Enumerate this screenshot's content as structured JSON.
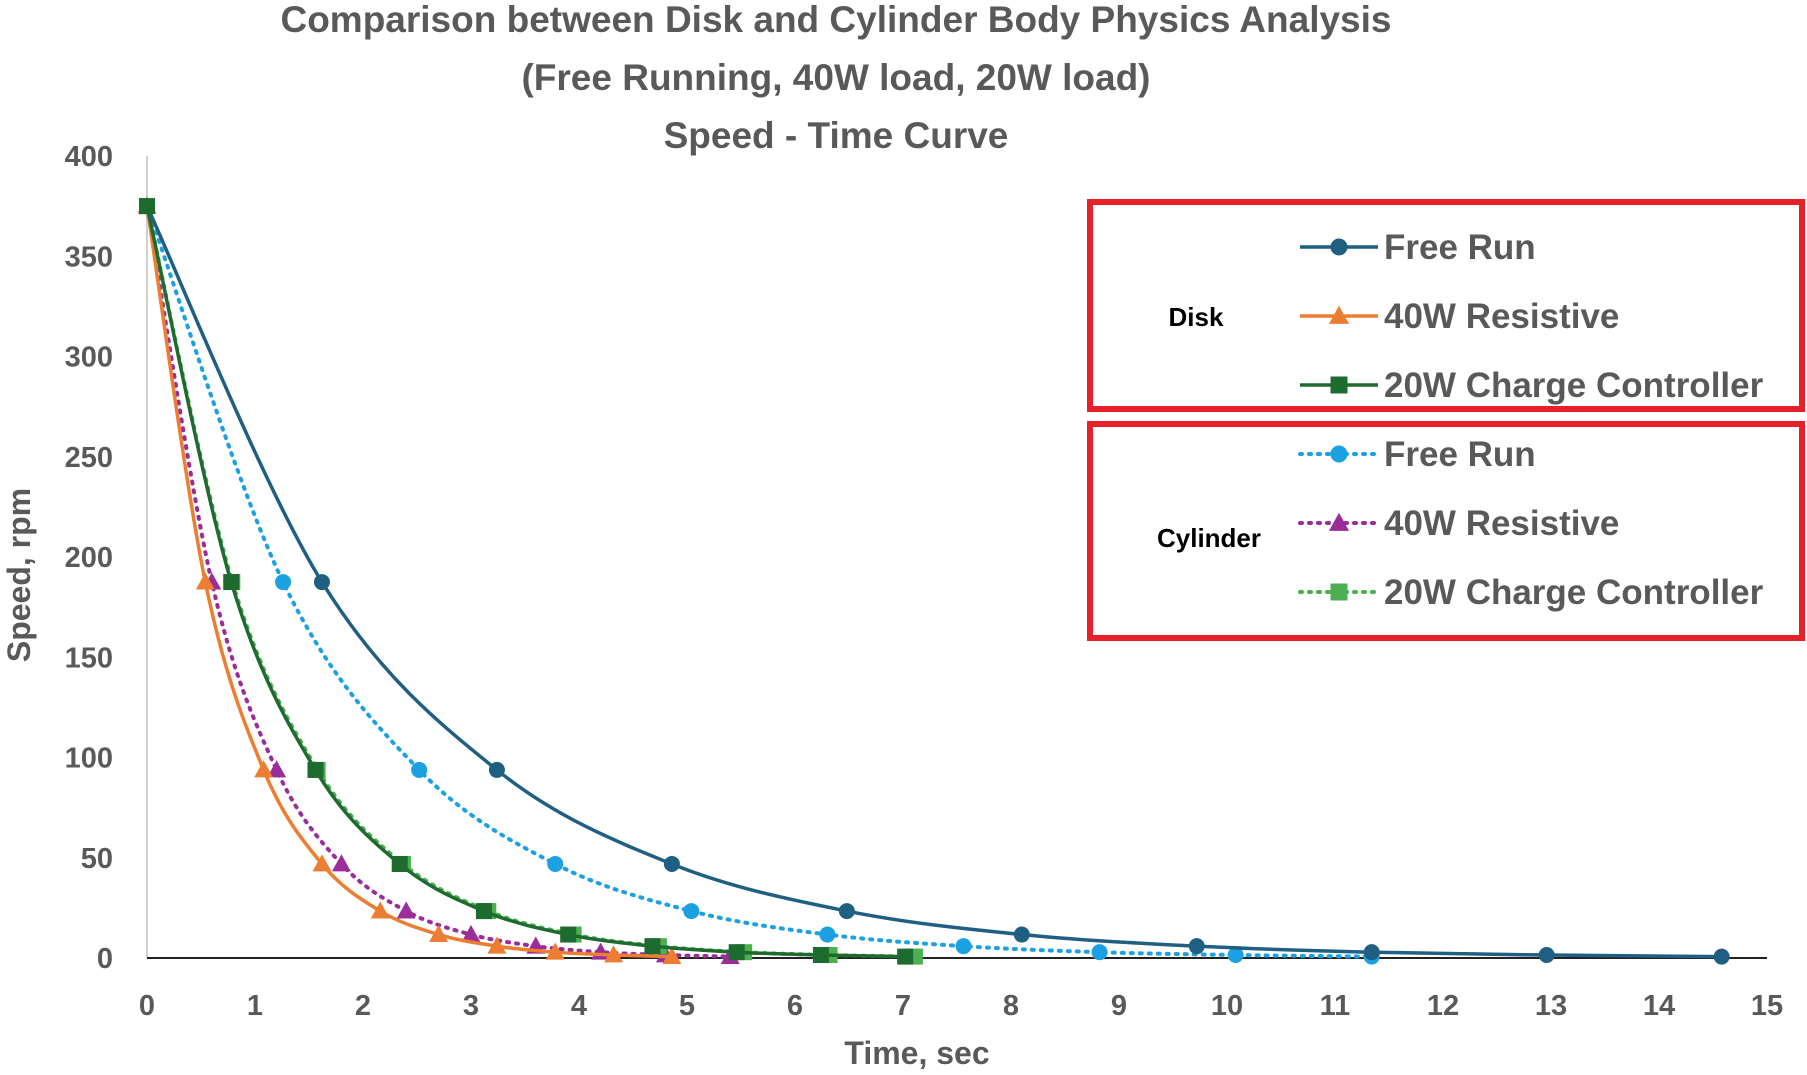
{
  "chart_data": {
    "type": "line",
    "title": [
      "Comparison between Disk and Cylinder Body Physics Analysis",
      "(Free Running, 40W load, 20W load)",
      "Speed - Time Curve"
    ],
    "xlabel": "Time, sec",
    "ylabel": "Speed, rpm",
    "xlim": [
      0,
      15
    ],
    "ylim": [
      0,
      400
    ],
    "xticks": [
      0,
      1,
      2,
      3,
      4,
      5,
      6,
      7,
      8,
      9,
      10,
      11,
      12,
      13,
      14,
      15
    ],
    "yticks": [
      0,
      50,
      100,
      150,
      200,
      250,
      300,
      350,
      400
    ],
    "grid": false,
    "legend_groups": [
      {
        "label": "Disk",
        "series": [
          0,
          1,
          2
        ]
      },
      {
        "label": "Cylinder",
        "series": [
          3,
          4,
          5
        ]
      }
    ],
    "series": [
      {
        "name": "Free Run",
        "group": "Disk",
        "color": "#1f5f82",
        "dash": "solid",
        "marker": "circle",
        "x": [
          0,
          1.62,
          3.24,
          4.86,
          6.48,
          8.1,
          9.72,
          11.34,
          12.96,
          14.58
        ],
        "y": [
          375,
          187.5,
          93.8,
          46.9,
          23.4,
          11.7,
          5.9,
          2.9,
          1.5,
          0.7
        ]
      },
      {
        "name": "40W Resistive",
        "group": "Disk",
        "color": "#ed7d31",
        "dash": "solid",
        "marker": "triangle",
        "x": [
          0,
          0.54,
          1.08,
          1.62,
          2.16,
          2.7,
          3.24,
          3.78,
          4.32,
          4.86
        ],
        "y": [
          375,
          187.5,
          93.8,
          46.9,
          23.4,
          11.7,
          5.9,
          2.9,
          1.5,
          0.7
        ]
      },
      {
        "name": "20W Charge Controller",
        "group": "Disk",
        "color": "#1e6b30",
        "dash": "solid",
        "marker": "square",
        "x": [
          0,
          0.78,
          1.56,
          2.34,
          3.12,
          3.9,
          4.68,
          5.46,
          6.24,
          7.02
        ],
        "y": [
          375,
          187.5,
          93.8,
          46.9,
          23.4,
          11.7,
          5.9,
          2.9,
          1.5,
          0.7
        ]
      },
      {
        "name": "Free Run",
        "group": "Cylinder",
        "color": "#1ba1e2",
        "dash": "dotted",
        "marker": "circle",
        "x": [
          0,
          1.26,
          2.52,
          3.78,
          5.04,
          6.3,
          7.56,
          8.82,
          10.08,
          11.34
        ],
        "y": [
          375,
          187.5,
          93.8,
          46.9,
          23.4,
          11.7,
          5.9,
          2.9,
          1.5,
          0.7
        ]
      },
      {
        "name": "40W Resistive",
        "group": "Cylinder",
        "color": "#9b2d9b",
        "dash": "dotted",
        "marker": "triangle",
        "x": [
          0,
          0.6,
          1.2,
          1.8,
          2.4,
          3.0,
          3.6,
          4.2,
          4.8,
          5.4
        ],
        "y": [
          375,
          187.5,
          93.8,
          46.9,
          23.4,
          11.7,
          5.9,
          2.9,
          1.5,
          0.7
        ]
      },
      {
        "name": "20W Charge Controller",
        "group": "Cylinder",
        "color": "#4caf50",
        "dash": "dotted",
        "marker": "square",
        "x": [
          0,
          0.79,
          1.58,
          2.37,
          3.16,
          3.95,
          4.74,
          5.53,
          6.32,
          7.11
        ],
        "y": [
          375,
          187.5,
          93.8,
          46.9,
          23.4,
          11.7,
          5.9,
          2.9,
          1.5,
          0.7
        ]
      }
    ]
  }
}
